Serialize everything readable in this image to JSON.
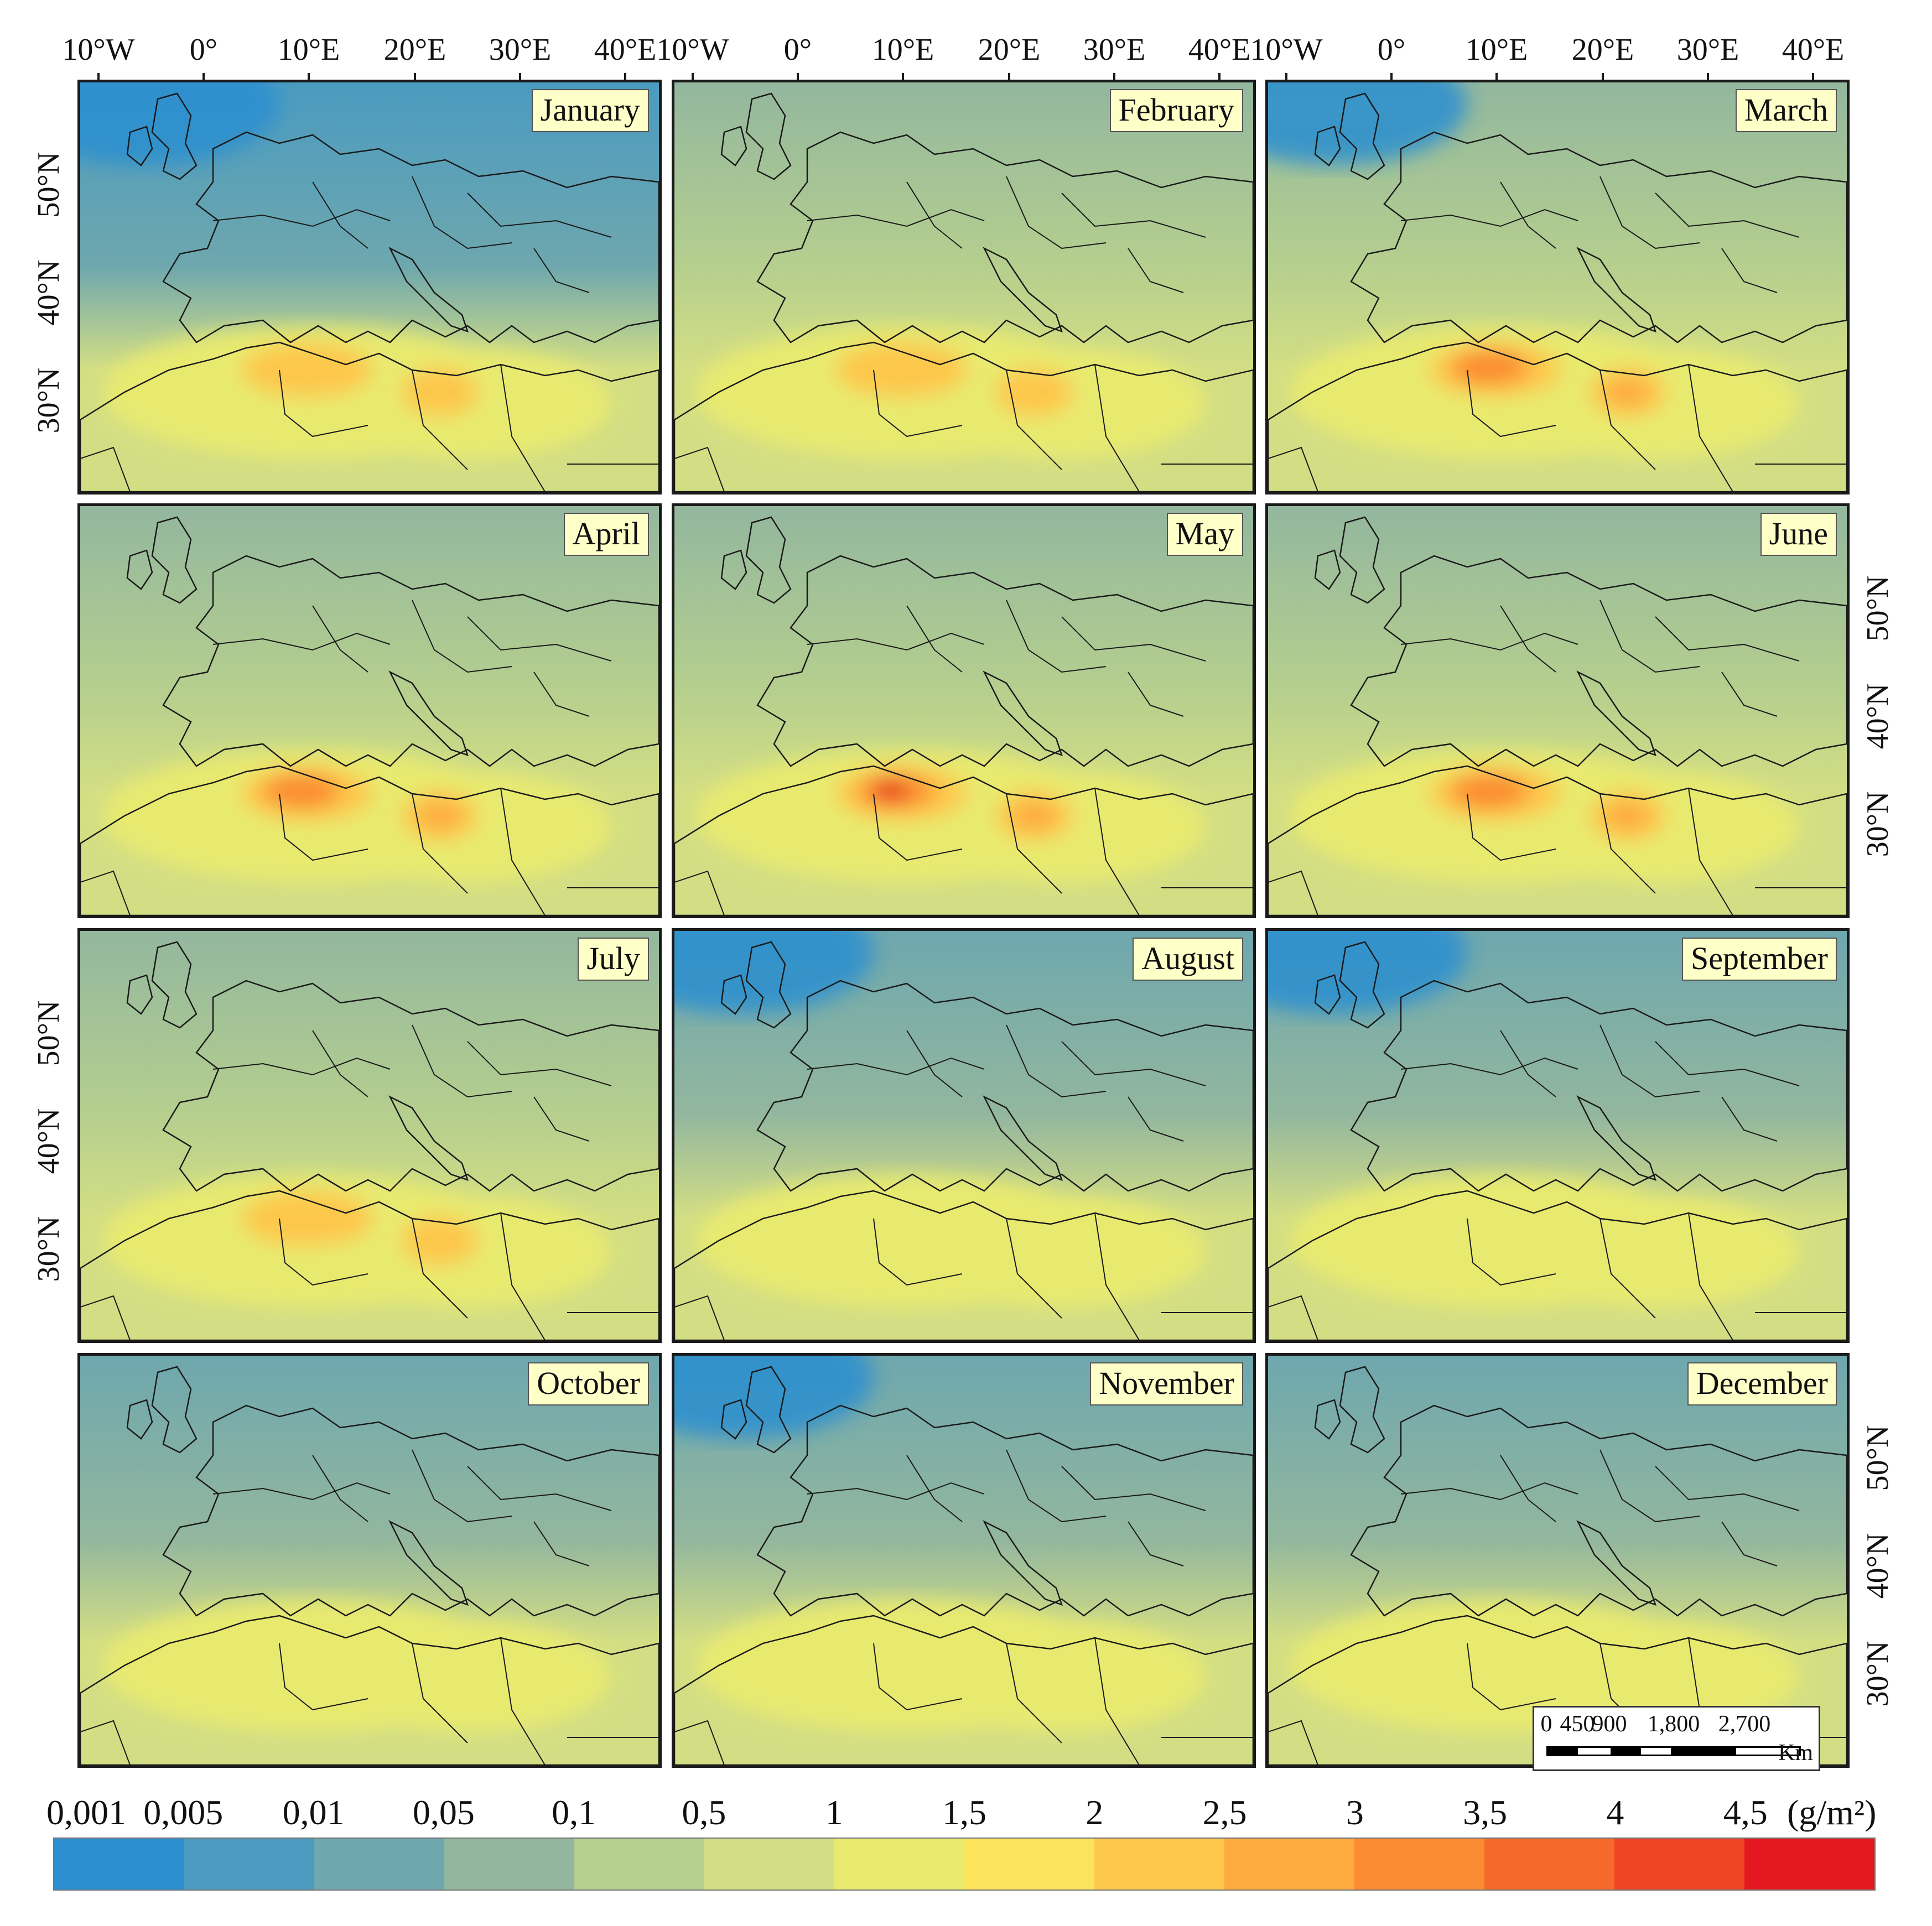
{
  "figure": {
    "top_lon_ticks": [
      "10°W",
      "0°",
      "10°E",
      "20°E",
      "30°E",
      "40°E"
    ],
    "lat_ticks": [
      "50°N",
      "40°N",
      "30°N"
    ],
    "panels": [
      {
        "month": "January"
      },
      {
        "month": "February"
      },
      {
        "month": "March"
      },
      {
        "month": "April"
      },
      {
        "month": "May"
      },
      {
        "month": "June"
      },
      {
        "month": "July"
      },
      {
        "month": "August"
      },
      {
        "month": "September"
      },
      {
        "month": "October"
      },
      {
        "month": "November"
      },
      {
        "month": "December"
      }
    ]
  },
  "legend": {
    "unit": "(g/m²)",
    "labels": [
      "0,001",
      "0,005",
      "0,01",
      "0,05",
      "0,1",
      "0,5",
      "1",
      "1,5",
      "2",
      "2,5",
      "3",
      "3,5",
      "4",
      "4,5"
    ],
    "colors": [
      "#2b8fd0",
      "#4b9bc0",
      "#6ea7ae",
      "#93b79e",
      "#b5cf8e",
      "#d3de84",
      "#e8ea70",
      "#fbe45b",
      "#fdc84c",
      "#fdaa3f",
      "#fb8c33",
      "#f56a2b",
      "#ee4524",
      "#e3191f"
    ]
  },
  "scalebar": {
    "labels": [
      "0",
      "450",
      "900",
      "1,800",
      "2,700"
    ],
    "unit": "Km"
  }
}
